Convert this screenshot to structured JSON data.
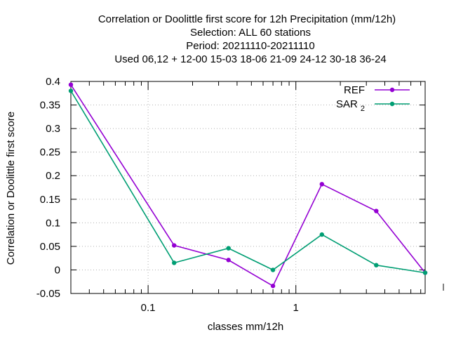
{
  "chart_data": {
    "type": "line",
    "title_lines": [
      "Correlation or Doolittle first score  for 12h Precipitation (mm/12h)",
      "Selection: ALL     60 stations",
      "Period: 20211110-20211110",
      "Used  06,12  + 12-00 15-03 18-06 21-09 24-12 30-18 36-24"
    ],
    "xlabel": "classes mm/12h",
    "ylabel": "Correlation or Doolittle first score",
    "x_scale": "log",
    "xlim": [
      0.03,
      7.5
    ],
    "ylim": [
      -0.05,
      0.4
    ],
    "x_ticks": [
      {
        "value": 0.1,
        "label": "0.1"
      },
      {
        "value": 1,
        "label": "1"
      }
    ],
    "y_ticks": [
      {
        "value": 0.4,
        "label": "0.4"
      },
      {
        "value": 0.35,
        "label": "0.35"
      },
      {
        "value": 0.3,
        "label": "0.3"
      },
      {
        "value": 0.25,
        "label": "0.25"
      },
      {
        "value": 0.2,
        "label": "0.2"
      },
      {
        "value": 0.15,
        "label": "0.15"
      },
      {
        "value": 0.1,
        "label": "0.1"
      },
      {
        "value": 0.05,
        "label": "0.05"
      },
      {
        "value": 0,
        "label": "0"
      },
      {
        "value": -0.05,
        "label": "-0.05"
      }
    ],
    "grid": true,
    "legend_position": "top-right",
    "series": [
      {
        "name": "REF",
        "color": "#9400d3",
        "x": [
          0.03,
          0.15,
          0.35,
          0.7,
          1.5,
          3.5,
          7.5
        ],
        "y": [
          0.393,
          0.052,
          0.021,
          -0.034,
          0.182,
          0.125,
          -0.006
        ]
      },
      {
        "name": "SAR",
        "name_subscript": "2",
        "color": "#009e73",
        "x": [
          0.03,
          0.15,
          0.35,
          0.7,
          1.5,
          3.5,
          7.5
        ],
        "y": [
          0.38,
          0.015,
          0.046,
          0.0,
          0.075,
          0.01,
          -0.006
        ]
      }
    ]
  }
}
